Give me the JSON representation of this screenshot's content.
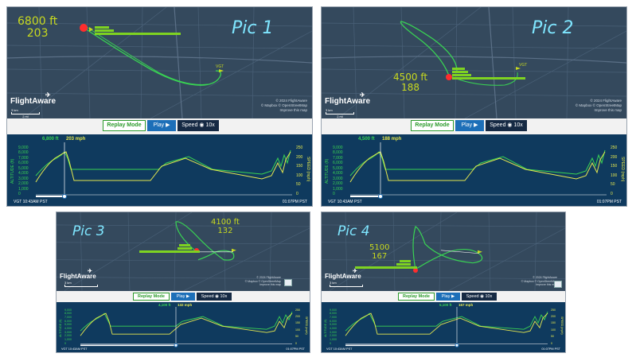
{
  "panels": [
    {
      "id": "pic1",
      "label": "Pic 1",
      "alt": "6800 ft",
      "speed": "203",
      "alt_readout": "6,800 ft",
      "spd_readout": "203 mph"
    },
    {
      "id": "pic2",
      "label": "Pic 2",
      "alt": "4500 ft",
      "speed": "188",
      "alt_readout": "4,500 ft",
      "spd_readout": "188 mph"
    },
    {
      "id": "pic3",
      "label": "Pic 3",
      "alt": "4100 ft",
      "speed": "132",
      "alt_readout": "4,100 ft",
      "spd_readout": "132 mph"
    },
    {
      "id": "pic4",
      "label": "Pic 4",
      "alt": "5100",
      "speed": "167",
      "alt_readout": "5,100 ft",
      "spd_readout": "167 mph"
    }
  ],
  "common": {
    "logo": "FlightAware",
    "credits_1": "© 2024 FlightAware",
    "credits_2": "© Mapbox © OpenStreetMap",
    "credits_3": "Improve this map",
    "airport": "VGT",
    "scale_km": "3 km",
    "scale_mi": "2 mi",
    "replay_mode": "Replay Mode",
    "play": "Play",
    "speed": "Speed",
    "speed_value": "10x",
    "alt_axis": "ALTITUDE (ft)",
    "spd_axis": "SPEED (mph)",
    "alt_ticks": [
      "9,000",
      "8,000",
      "7,000",
      "6,000",
      "5,000",
      "4,000",
      "3,000",
      "2,000",
      "1,000",
      "0"
    ],
    "spd_ticks": [
      "250",
      "200",
      "150",
      "100",
      "50",
      "0"
    ],
    "start_time": "VGT 10:43AM PST",
    "end_time": "01:07PM PST"
  },
  "colors": {
    "map": "#34495d",
    "chart": "#0f3a5e",
    "altitude": "#39d353",
    "speed": "#e6e84f",
    "annotation": "#c8d91f",
    "pic_label": "#7fe6ff",
    "marker": "#ff2d2d"
  }
}
